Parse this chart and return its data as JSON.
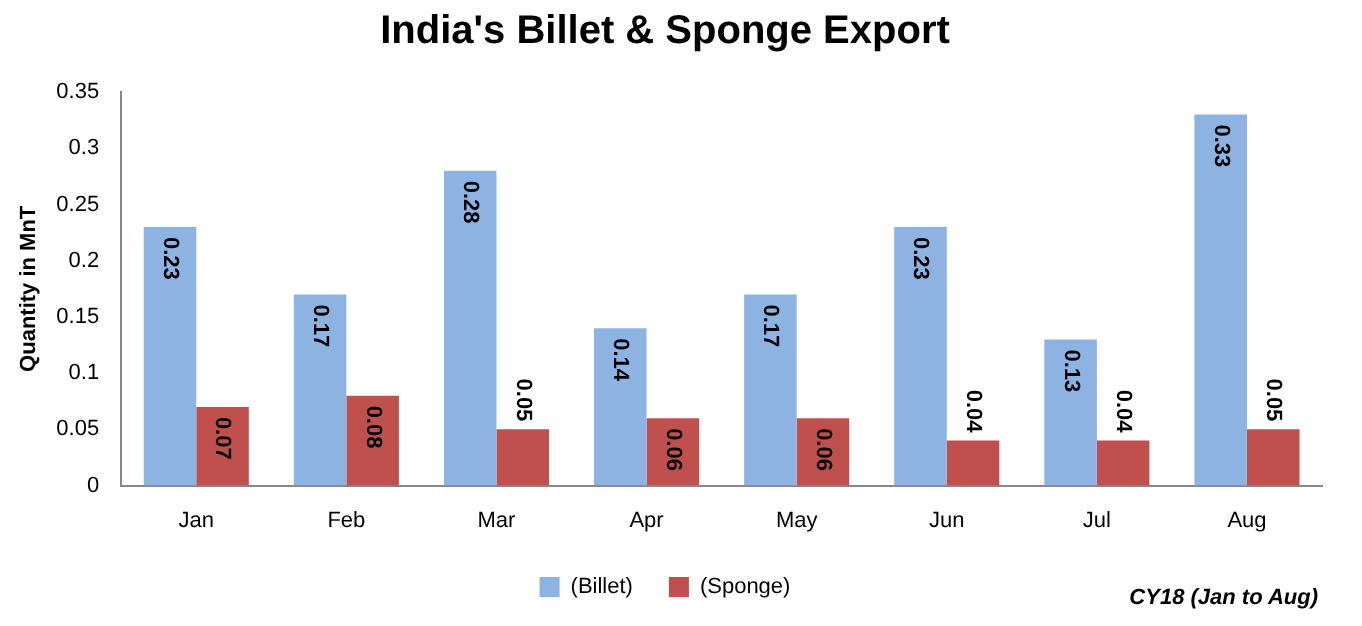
{
  "chart_data": {
    "type": "bar",
    "title": "India's Billet & Sponge Export",
    "ylabel": "Quantity in MnT",
    "categories": [
      "Jan",
      "Feb",
      "Mar",
      "Apr",
      "May",
      "Jun",
      "Jul",
      "Aug"
    ],
    "series": [
      {
        "name": "(Billet)",
        "color": "#8db3e2",
        "values": [
          0.23,
          0.17,
          0.28,
          0.14,
          0.17,
          0.23,
          0.13,
          0.33
        ]
      },
      {
        "name": "(Sponge)",
        "color": "#c0504d",
        "values": [
          0.07,
          0.08,
          0.05,
          0.06,
          0.06,
          0.04,
          0.04,
          0.05
        ]
      }
    ],
    "ylim": [
      0,
      0.35
    ],
    "yticks": [
      0,
      0.05,
      0.1,
      0.15,
      0.2,
      0.25,
      0.3,
      0.35
    ],
    "grid": false,
    "legend": "bottom",
    "data_labels": true,
    "annotations": [
      "CY18 (Jan to Aug)"
    ]
  }
}
